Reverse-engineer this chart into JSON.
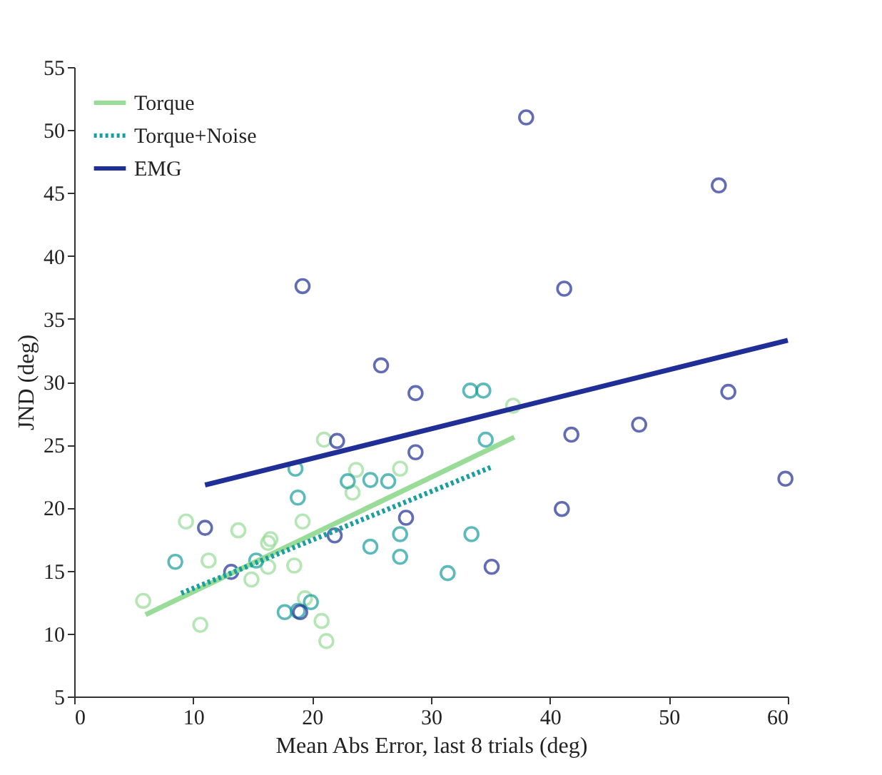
{
  "chart_data": {
    "type": "scatter",
    "xlabel": "Mean Abs Error, last 8 trials (deg)",
    "ylabel": "JND (deg)",
    "xlim": [
      0,
      60
    ],
    "xticks": [
      0,
      10,
      20,
      30,
      40,
      50,
      60
    ],
    "ylim": [
      5,
      55
    ],
    "yticks": [
      5,
      10,
      15,
      20,
      25,
      30,
      35,
      40,
      45,
      50,
      55
    ],
    "grid": false,
    "legend": "top left",
    "series": [
      {
        "marker": "circle",
        "color": "#98dc98",
        "x": [
          5.8,
          9.4,
          13.8,
          11.3,
          10.6,
          14.9,
          16.3,
          16.3,
          16.5,
          19.2,
          18.5,
          19.4,
          20.8,
          21.2,
          21,
          23.7,
          23.4,
          27.4,
          36.9
        ],
        "values": [
          12.6,
          18.9,
          18.2,
          15.8,
          10.7,
          14.3,
          17.2,
          15.3,
          17.5,
          18.9,
          15.4,
          12.8,
          11,
          9.4,
          25.4,
          23,
          21.2,
          23.1,
          28.1
        ]
      },
      {
        "marker": "circle",
        "color": "#1a9e9e",
        "x": [
          8.5,
          15.3,
          18.6,
          18.8,
          17.7,
          18.8,
          19.9,
          23,
          24.9,
          26.4,
          33.3,
          34.4,
          34.6,
          27.4,
          27.4,
          24.9,
          31.4,
          33.4
        ],
        "values": [
          15.7,
          15.8,
          23.1,
          20.8,
          11.7,
          11.8,
          12.5,
          22.1,
          22.2,
          22.1,
          29.3,
          29.3,
          25.4,
          17.9,
          16.1,
          16.9,
          14.8,
          17.9
        ]
      },
      {
        "marker": "circle",
        "color": "#1f2f96",
        "x": [
          38,
          54.2,
          19.2,
          41.2,
          25.8,
          28.7,
          55,
          22.1,
          41.8,
          47.5,
          28.7,
          59.8,
          11,
          41,
          27.9,
          21.9,
          13.2,
          35.1,
          19
        ],
        "values": [
          51,
          45.6,
          37.6,
          37.4,
          31.3,
          29.1,
          29.2,
          25.3,
          25.8,
          26.6,
          24.4,
          22.3,
          18.4,
          19.9,
          19.2,
          17.8,
          14.9,
          15.3,
          11.7
        ]
      },
      {
        "type": "line",
        "name": "Torque",
        "color": "#98dc98",
        "line_style": "solid",
        "marker": "none",
        "x": [
          6,
          37
        ],
        "values": [
          11.5,
          25.6
        ]
      },
      {
        "type": "line",
        "name": "Torque+Noise",
        "color": "#1a9e9e",
        "line_style": "dotted",
        "marker": "none",
        "x": [
          9,
          35
        ],
        "values": [
          13.2,
          23.2
        ]
      },
      {
        "type": "line",
        "name": "EMG",
        "color": "#1f2f96",
        "line_style": "solid",
        "marker": "none",
        "x": [
          11,
          60
        ],
        "values": [
          21.8,
          33.3
        ]
      }
    ]
  }
}
